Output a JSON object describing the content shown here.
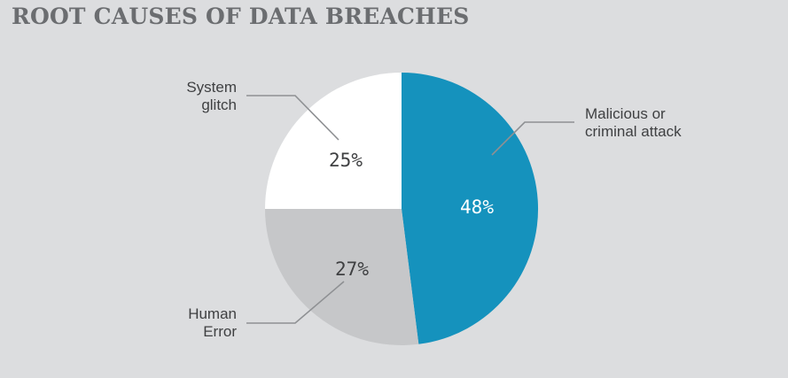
{
  "chart_data": {
    "type": "pie",
    "title": "ROOT CAUSES OF DATA BREACHES",
    "start_angle_deg": 0,
    "direction": "clockwise",
    "slices": [
      {
        "key": "malicious",
        "label": "Malicious or criminal attack",
        "label_lines": [
          "Malicious or",
          "criminal attack"
        ],
        "value": 48,
        "display": "48%",
        "color": "#1592bd",
        "text_color": "#ffffff"
      },
      {
        "key": "human",
        "label": "Human Error",
        "label_lines": [
          "Human",
          "Error"
        ],
        "value": 27,
        "display": "27%",
        "color": "#c6c7c9",
        "text_color": "#3f4042"
      },
      {
        "key": "system",
        "label": "System glitch",
        "label_lines": [
          "System",
          "glitch"
        ],
        "value": 25,
        "display": "25%",
        "color": "#ffffff",
        "text_color": "#3f4042"
      }
    ]
  }
}
